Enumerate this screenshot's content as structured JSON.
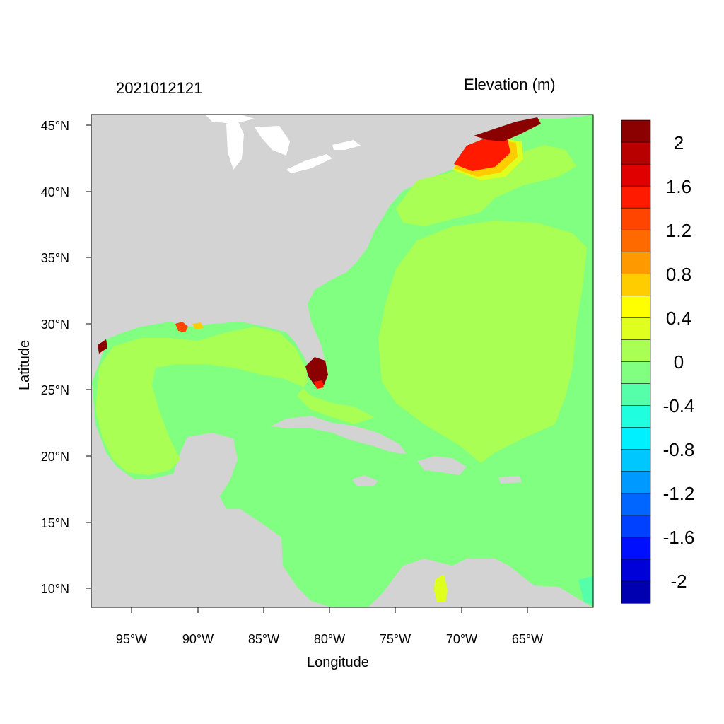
{
  "title_left": "2021012121",
  "title_right": "Elevation (m)",
  "xlabel": "Longitude",
  "ylabel": "Latitude",
  "x_ticks": [
    "95°W",
    "90°W",
    "85°W",
    "80°W",
    "75°W",
    "70°W",
    "65°W"
  ],
  "y_ticks": [
    "45°N",
    "40°N",
    "35°N",
    "30°N",
    "25°N",
    "20°N",
    "15°N",
    "10°N"
  ],
  "colorbar": {
    "labels": [
      "2",
      "1.6",
      "1.2",
      "0.8",
      "0.4",
      "0",
      "-0.4",
      "-0.8",
      "-1.2",
      "-1.6",
      "-2"
    ],
    "colors": [
      "#8b0000",
      "#b80000",
      "#e00000",
      "#ff1a00",
      "#ff4500",
      "#ff6a00",
      "#ff9900",
      "#ffcc00",
      "#ffff00",
      "#dfff1f",
      "#aaff55",
      "#80ff80",
      "#55ffaa",
      "#1fffdf",
      "#00f0ff",
      "#00c8ff",
      "#0099ff",
      "#0066ff",
      "#0040ff",
      "#0010ff",
      "#0000d8",
      "#0000b0"
    ]
  },
  "colors": {
    "land": "#d3d3d3",
    "sea_zero": "#80ff80",
    "sea_low": "#aaff55",
    "surge_high": "#8b0000",
    "surge_mid": "#ff1a00",
    "surge_warm": "#ffcc00",
    "surge_light": "#dfff1f"
  },
  "chart_data": {
    "type": "heatmap",
    "variable": "Elevation (m)",
    "time": "2021012121",
    "xlim": [
      -98,
      -60
    ],
    "ylim": [
      8.5,
      46
    ],
    "color_levels": [
      -2,
      -1.6,
      -1.2,
      -0.8,
      -0.4,
      0,
      0.4,
      0.8,
      1.2,
      1.6,
      2
    ]
  }
}
